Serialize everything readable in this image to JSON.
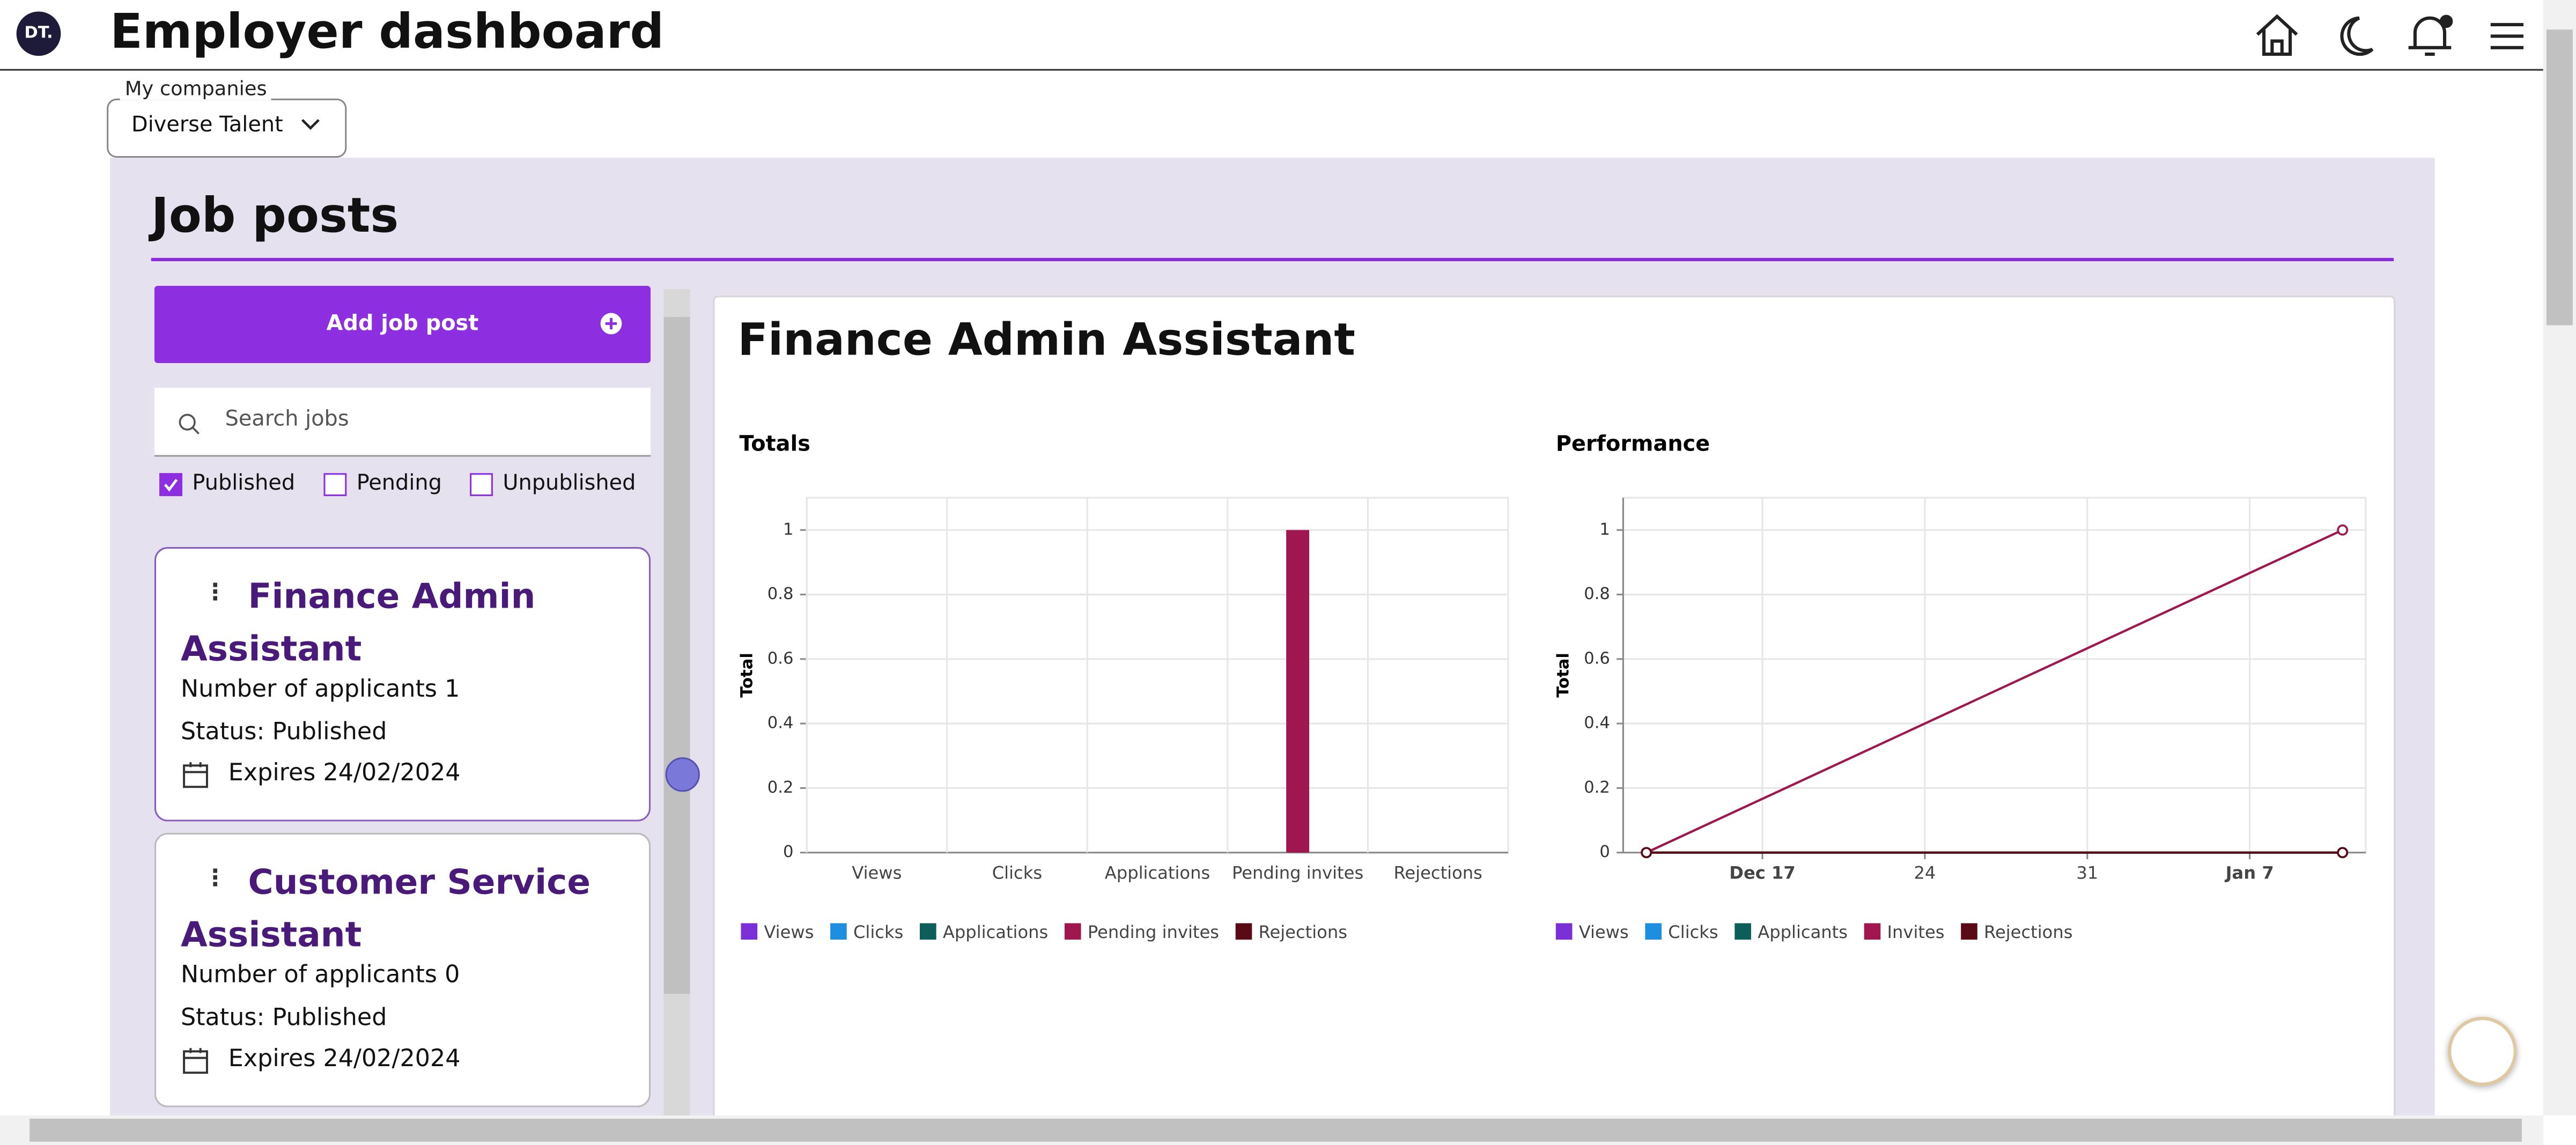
{
  "header": {
    "logo": "DT.",
    "title": "Employer dashboard"
  },
  "companies": {
    "label": "My companies",
    "selected": "Diverse Talent"
  },
  "section": {
    "title": "Job posts"
  },
  "add_button": "Add job post",
  "search": {
    "placeholder": "Search jobs"
  },
  "filters": [
    {
      "label": "Published",
      "checked": true
    },
    {
      "label": "Pending",
      "checked": false
    },
    {
      "label": "Unpublished",
      "checked": false
    }
  ],
  "jobs": [
    {
      "title": "Finance Admin Assistant",
      "applicants": "Number of applicants 1",
      "status": "Status: Published",
      "expires": "Expires 24/02/2024"
    },
    {
      "title": "Customer Service Assistant",
      "applicants": "Number of applicants 0",
      "status": "Status: Published",
      "expires": "Expires 24/02/2024"
    }
  ],
  "detail": {
    "title": "Finance Admin Assistant"
  },
  "chart_data": [
    {
      "type": "bar",
      "title": "Totals",
      "y_label": "Total",
      "categories": [
        "Views",
        "Clicks",
        "Applications",
        "Pending invites",
        "Rejections"
      ],
      "values": [
        0,
        0,
        0,
        1,
        0
      ],
      "colors": [
        "#7b2fd6",
        "#1e8fe0",
        "#0d5e5a",
        "#a0174f",
        "#5a0a14"
      ],
      "ylim": [
        0,
        1.1
      ],
      "yticks": [
        0,
        0.2,
        0.4,
        0.6,
        0.8,
        1
      ],
      "grid": true
    },
    {
      "type": "line",
      "title": "Performance",
      "y_label": "Total",
      "x": [
        "Dec 12",
        "Jan 11"
      ],
      "xlim": [
        "Dec 11",
        "Jan 12"
      ],
      "xticks": [
        {
          "value": "Dec 17",
          "label": "Dec 17"
        },
        {
          "value": "Dec 24",
          "label": "24"
        },
        {
          "value": "Dec 31",
          "label": "31"
        },
        {
          "value": "Jan 7",
          "label": "Jan 7"
        }
      ],
      "series": [
        {
          "name": "Views",
          "color": "#7b2fd6",
          "values": [
            0,
            0
          ]
        },
        {
          "name": "Clicks",
          "color": "#1e8fe0",
          "values": [
            0,
            0
          ]
        },
        {
          "name": "Applicants",
          "color": "#0d5e5a",
          "values": [
            0,
            0
          ]
        },
        {
          "name": "Invites",
          "color": "#a0174f",
          "values": [
            0,
            1
          ]
        },
        {
          "name": "Rejections",
          "color": "#5a0a14",
          "values": [
            0,
            0
          ]
        }
      ],
      "ylim": [
        0,
        1.1
      ],
      "yticks": [
        0,
        0.2,
        0.4,
        0.6,
        0.8,
        1
      ],
      "grid": true
    }
  ]
}
